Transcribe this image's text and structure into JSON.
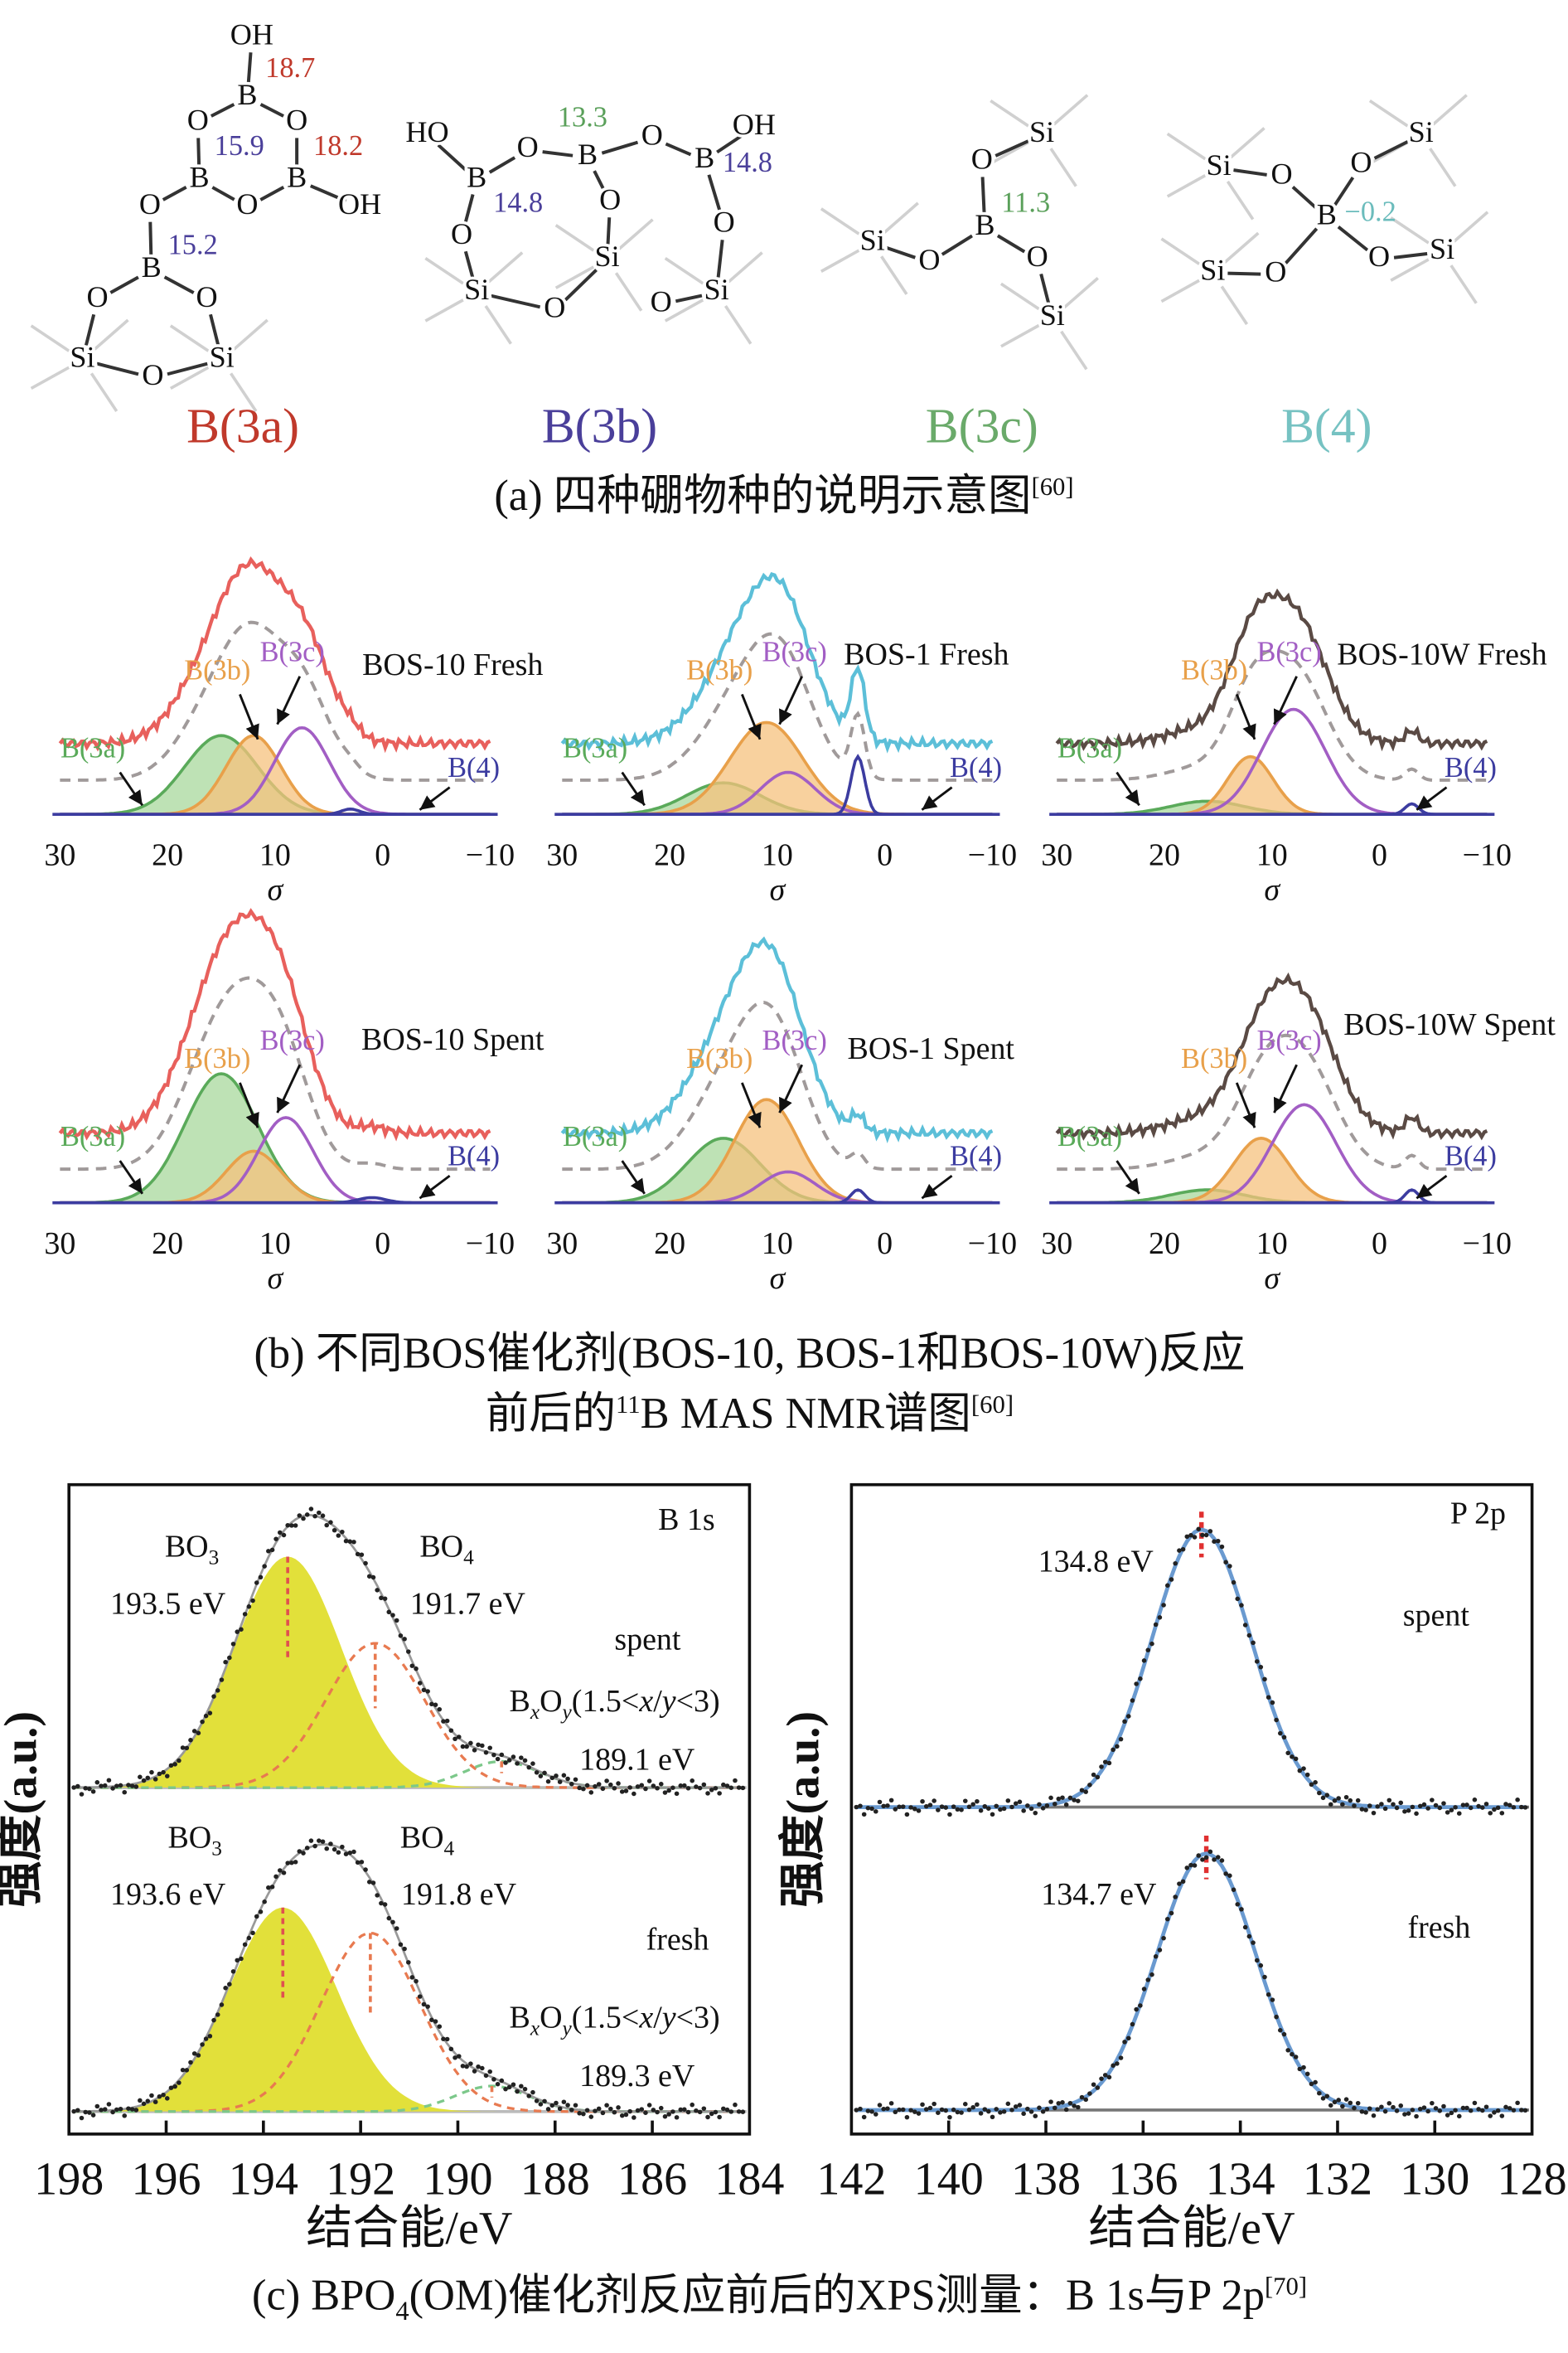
{
  "panel_a": {
    "caption": "(a) 四种硼物种的说明示意图",
    "caption_ref": "[60]",
    "molecules": [
      {
        "label": "B(3a)",
        "color": "#c0392b",
        "atoms": [
          "OH",
          "B",
          "O",
          "O",
          "B",
          "B",
          "O",
          "O",
          "OH",
          "B",
          "O",
          "O",
          "Si",
          "O",
          "Si"
        ],
        "shifts": [
          {
            "text": "18.7",
            "color": "#c0392b"
          },
          {
            "text": "15.9",
            "color": "#4a3f9a"
          },
          {
            "text": "18.2",
            "color": "#c0392b"
          },
          {
            "text": "15.2",
            "color": "#4a3f9a"
          }
        ]
      },
      {
        "label": "B(3b)",
        "color": "#4a3f9a",
        "atoms": [
          "HO",
          "B",
          "O",
          "B",
          "O",
          "B",
          "OH",
          "O",
          "O",
          "O",
          "Si",
          "Si",
          "O",
          "O",
          "Si"
        ],
        "shifts": [
          {
            "text": "13.3",
            "color": "#5aa05a"
          },
          {
            "text": "14.8",
            "color": "#4a3f9a"
          },
          {
            "text": "14.8",
            "color": "#4a3f9a"
          }
        ]
      },
      {
        "label": "B(3c)",
        "color": "#6aaa6a",
        "atoms": [
          "O",
          "Si",
          "B",
          "Si",
          "O",
          "O",
          "Si"
        ],
        "shifts": [
          {
            "text": "11.3",
            "color": "#5aa05a"
          }
        ]
      },
      {
        "label": "B(4)",
        "color": "#76c2c2",
        "atoms": [
          "Si",
          "O",
          "O",
          "Si",
          "B",
          "Si",
          "O",
          "O",
          "Si"
        ],
        "shifts": [
          {
            "text": "−0.2",
            "color": "#6bbcbc"
          }
        ]
      }
    ]
  },
  "panel_b": {
    "caption_line1": "(b) 不同BOS催化剂(BOS-10, BOS-1和BOS-10W)反应",
    "caption_line2_pre": "前后的",
    "caption_line2_sup": "11",
    "caption_line2_post": "B MAS NMR谱图",
    "caption_ref": "[60]"
  },
  "panel_c": {
    "caption_pre": "(c) BPO",
    "caption_sub": "4",
    "caption_post": "(OM)催化剂反应前后的XPS测量：B 1s与P 2p",
    "caption_ref": "[70]"
  },
  "colors": {
    "B(3a)": "#5aaa5a",
    "B(3a)_fill": "#a8d89c",
    "B(3b)": "#e8a04a",
    "B(3b)_fill": "#f6c27e",
    "B(3c)": "#a25ec4",
    "B(4)": "#3c3ca0",
    "dashed_envelope": "#a09a9a",
    "BOS-10": "#e8605c",
    "BOS-1": "#5cbfd8",
    "BOS-10W": "#5a4a44",
    "BO3_fill": "#e2e03a",
    "BO4": "#e87a50",
    "BxOy": "#7cc88a",
    "P2p_fit": "#6a9ad0",
    "peak_marker": "#e03030"
  },
  "chart_data": [
    {
      "type": "line",
      "title": "BOS-10 Fresh",
      "xlabel": "σ",
      "xlim": [
        30,
        -10
      ],
      "xticks": [
        "30",
        "20",
        "10",
        "0",
        "−10"
      ],
      "components": [
        {
          "name": "B(3a)",
          "center": 15,
          "fwhm": 8,
          "height": 0.3
        },
        {
          "name": "B(3b)",
          "center": 12,
          "fwhm": 6,
          "height": 0.3
        },
        {
          "name": "B(3c)",
          "center": 7.5,
          "fwhm": 6,
          "height": 0.33
        },
        {
          "name": "B(4)",
          "center": 3,
          "fwhm": 2,
          "height": 0.02
        }
      ]
    },
    {
      "type": "line",
      "title": "BOS-1 Fresh",
      "xlabel": "σ",
      "xlim": [
        30,
        -10
      ],
      "xticks": [
        "30",
        "20",
        "10",
        "0",
        "−10"
      ],
      "components": [
        {
          "name": "B(3a)",
          "center": 15,
          "fwhm": 8,
          "height": 0.12
        },
        {
          "name": "B(3b)",
          "center": 11,
          "fwhm": 8,
          "height": 0.35
        },
        {
          "name": "B(3c)",
          "center": 9,
          "fwhm": 6,
          "height": 0.16
        },
        {
          "name": "B(4)",
          "center": 2.5,
          "fwhm": 1.5,
          "height": 0.22
        }
      ]
    },
    {
      "type": "line",
      "title": "BOS-10W Fresh",
      "xlabel": "σ",
      "xlim": [
        30,
        -10
      ],
      "xticks": [
        "30",
        "20",
        "10",
        "0",
        "−10"
      ],
      "components": [
        {
          "name": "B(3a)",
          "center": 16,
          "fwhm": 8,
          "height": 0.05
        },
        {
          "name": "B(3b)",
          "center": 12,
          "fwhm": 5,
          "height": 0.22
        },
        {
          "name": "B(3c)",
          "center": 8,
          "fwhm": 7,
          "height": 0.4
        },
        {
          "name": "B(4)",
          "center": -3,
          "fwhm": 1.5,
          "height": 0.04
        }
      ]
    },
    {
      "type": "line",
      "title": "BOS-10 Spent",
      "xlabel": "σ",
      "xlim": [
        30,
        -10
      ],
      "xticks": [
        "30",
        "20",
        "10",
        "0",
        "−10"
      ],
      "components": [
        {
          "name": "B(3a)",
          "center": 15,
          "fwhm": 8,
          "height": 0.5
        },
        {
          "name": "B(3b)",
          "center": 12,
          "fwhm": 6,
          "height": 0.2
        },
        {
          "name": "B(3c)",
          "center": 9,
          "fwhm": 6,
          "height": 0.33
        },
        {
          "name": "B(4)",
          "center": 1,
          "fwhm": 3,
          "height": 0.02
        }
      ]
    },
    {
      "type": "line",
      "title": "BOS-1 Spent",
      "xlabel": "σ",
      "xlim": [
        30,
        -10
      ],
      "xticks": [
        "30",
        "20",
        "10",
        "0",
        "−10"
      ],
      "components": [
        {
          "name": "B(3a)",
          "center": 15,
          "fwhm": 8,
          "height": 0.25
        },
        {
          "name": "B(3b)",
          "center": 11,
          "fwhm": 7,
          "height": 0.4
        },
        {
          "name": "B(3c)",
          "center": 9,
          "fwhm": 6,
          "height": 0.12
        },
        {
          "name": "B(4)",
          "center": 2.5,
          "fwhm": 1.5,
          "height": 0.05
        }
      ]
    },
    {
      "type": "line",
      "title": "BOS-10W Spent",
      "xlabel": "σ",
      "xlim": [
        30,
        -10
      ],
      "xticks": [
        "30",
        "20",
        "10",
        "0",
        "−10"
      ],
      "components": [
        {
          "name": "B(3a)",
          "center": 16,
          "fwhm": 8,
          "height": 0.05
        },
        {
          "name": "B(3b)",
          "center": 11,
          "fwhm": 6,
          "height": 0.25
        },
        {
          "name": "B(3c)",
          "center": 7,
          "fwhm": 7,
          "height": 0.38
        },
        {
          "name": "B(4)",
          "center": -3,
          "fwhm": 1.5,
          "height": 0.05
        }
      ]
    },
    {
      "type": "line",
      "title": "B 1s",
      "xlabel": "结合能/eV",
      "ylabel": "强度(a.u.)",
      "xlim": [
        198,
        184
      ],
      "xticks": [
        "198",
        "196",
        "194",
        "192",
        "190",
        "188",
        "186",
        "184"
      ],
      "panels": [
        {
          "label": "spent",
          "peaks": [
            {
              "name": "BO",
              "sub": "3",
              "center": 193.5,
              "fwhm": 2.6,
              "height": 0.88,
              "value_label": "193.5 eV"
            },
            {
              "name": "BO",
              "sub": "4",
              "center": 191.7,
              "fwhm": 2.4,
              "height": 0.55,
              "value_label": "191.7 eV"
            },
            {
              "name_parts": [
                "B",
                "x",
                "O",
                "y",
                "(1.5<",
                "x",
                "/",
                "y",
                "<3)"
              ],
              "center": 189.1,
              "fwhm": 1.8,
              "height": 0.1,
              "value_label": "189.1 eV"
            }
          ]
        },
        {
          "label": "fresh",
          "peaks": [
            {
              "name": "BO",
              "sub": "3",
              "center": 193.6,
              "fwhm": 2.6,
              "height": 0.8,
              "value_label": "193.6 eV"
            },
            {
              "name": "BO",
              "sub": "4",
              "center": 191.8,
              "fwhm": 2.4,
              "height": 0.7,
              "value_label": "191.8 eV"
            },
            {
              "name_parts": [
                "B",
                "x",
                "O",
                "y",
                "(1.5<",
                "x",
                "/",
                "y",
                "<3)"
              ],
              "center": 189.3,
              "fwhm": 1.8,
              "height": 0.1,
              "value_label": "189.3 eV"
            }
          ]
        }
      ]
    },
    {
      "type": "line",
      "title": "P 2p",
      "xlabel": "结合能/eV",
      "ylabel": "强度(a.u.)",
      "xlim": [
        142,
        128
      ],
      "xticks": [
        "142",
        "140",
        "138",
        "136",
        "134",
        "132",
        "130",
        "128"
      ],
      "panels": [
        {
          "label": "spent",
          "peaks": [
            {
              "center": 134.8,
              "fwhm": 2.4,
              "height": 1.0,
              "value_label": "134.8 eV"
            }
          ]
        },
        {
          "label": "fresh",
          "peaks": [
            {
              "center": 134.7,
              "fwhm": 2.4,
              "height": 0.95,
              "value_label": "134.7 eV"
            }
          ]
        }
      ]
    }
  ]
}
